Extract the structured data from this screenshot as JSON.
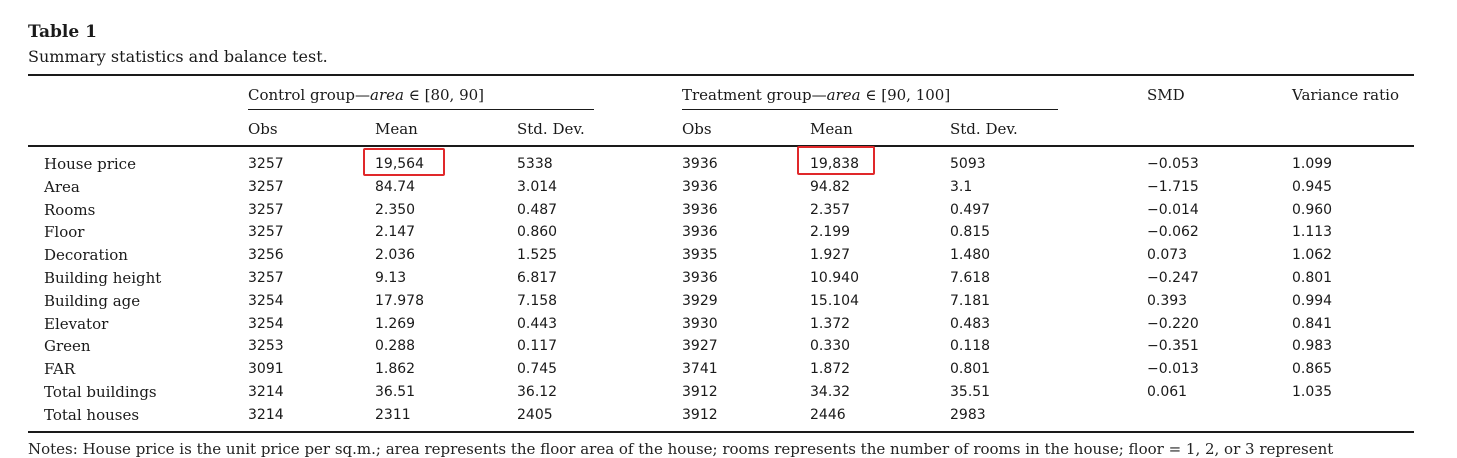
{
  "table": {
    "label": "Table 1",
    "caption": "Summary statistics and balance test.",
    "group_control": {
      "prefix": "Control group—",
      "var": "area",
      "suffix": " ∈ [80, 90]"
    },
    "group_treatment": {
      "prefix": "Treatment group—",
      "var": "area",
      "suffix": " ∈ [90, 100]"
    },
    "col_smd": "SMD",
    "col_var_ratio": "Variance ratio",
    "sub_obs": "Obs",
    "sub_mean": "Mean",
    "sub_sd": "Std. Dev.",
    "rows": [
      {
        "name": "House price",
        "c_obs": "3257",
        "c_mean": "19,564",
        "c_sd": "5338",
        "t_obs": "3936",
        "t_mean": "19,838",
        "t_sd": "5093",
        "smd": "−0.053",
        "vr": "1.099"
      },
      {
        "name": "Area",
        "c_obs": "3257",
        "c_mean": "84.74",
        "c_sd": "3.014",
        "t_obs": "3936",
        "t_mean": "94.82",
        "t_sd": "3.1",
        "smd": "−1.715",
        "vr": "0.945"
      },
      {
        "name": "Rooms",
        "c_obs": "3257",
        "c_mean": "2.350",
        "c_sd": "0.487",
        "t_obs": "3936",
        "t_mean": "2.357",
        "t_sd": "0.497",
        "smd": "−0.014",
        "vr": "0.960"
      },
      {
        "name": "Floor",
        "c_obs": "3257",
        "c_mean": "2.147",
        "c_sd": "0.860",
        "t_obs": "3936",
        "t_mean": "2.199",
        "t_sd": "0.815",
        "smd": "−0.062",
        "vr": "1.113"
      },
      {
        "name": "Decoration",
        "c_obs": "3256",
        "c_mean": "2.036",
        "c_sd": "1.525",
        "t_obs": "3935",
        "t_mean": "1.927",
        "t_sd": "1.480",
        "smd": "0.073",
        "vr": "1.062"
      },
      {
        "name": "Building height",
        "c_obs": "3257",
        "c_mean": "9.13",
        "c_sd": "6.817",
        "t_obs": "3936",
        "t_mean": "10.940",
        "t_sd": "7.618",
        "smd": "−0.247",
        "vr": "0.801"
      },
      {
        "name": "Building age",
        "c_obs": "3254",
        "c_mean": "17.978",
        "c_sd": "7.158",
        "t_obs": "3929",
        "t_mean": "15.104",
        "t_sd": "7.181",
        "smd": "0.393",
        "vr": "0.994"
      },
      {
        "name": "Elevator",
        "c_obs": "3254",
        "c_mean": "1.269",
        "c_sd": "0.443",
        "t_obs": "3930",
        "t_mean": "1.372",
        "t_sd": "0.483",
        "smd": "−0.220",
        "vr": "0.841"
      },
      {
        "name": "Green",
        "c_obs": "3253",
        "c_mean": "0.288",
        "c_sd": "0.117",
        "t_obs": "3927",
        "t_mean": "0.330",
        "t_sd": "0.118",
        "smd": "−0.351",
        "vr": "0.983"
      },
      {
        "name": "FAR",
        "c_obs": "3091",
        "c_mean": "1.862",
        "c_sd": "0.745",
        "t_obs": "3741",
        "t_mean": "1.872",
        "t_sd": "0.801",
        "smd": "−0.013",
        "vr": "0.865"
      },
      {
        "name": "Total buildings",
        "c_obs": "3214",
        "c_mean": "36.51",
        "c_sd": "36.12",
        "t_obs": "3912",
        "t_mean": "34.32",
        "t_sd": "35.51",
        "smd": "0.061",
        "vr": "1.035"
      },
      {
        "name": "Total houses",
        "c_obs": "3214",
        "c_mean": "2311",
        "c_sd": "2405",
        "t_obs": "3912",
        "t_mean": "2446",
        "t_sd": "2983",
        "smd": "",
        "vr": ""
      }
    ],
    "notes": "Notes: House price is the unit price per sq.m.; area represents the floor area of the house; rooms represents the number of rooms in the house; floor = 1, 2, or 3 represent",
    "highlight_color": "#e0282a"
  }
}
